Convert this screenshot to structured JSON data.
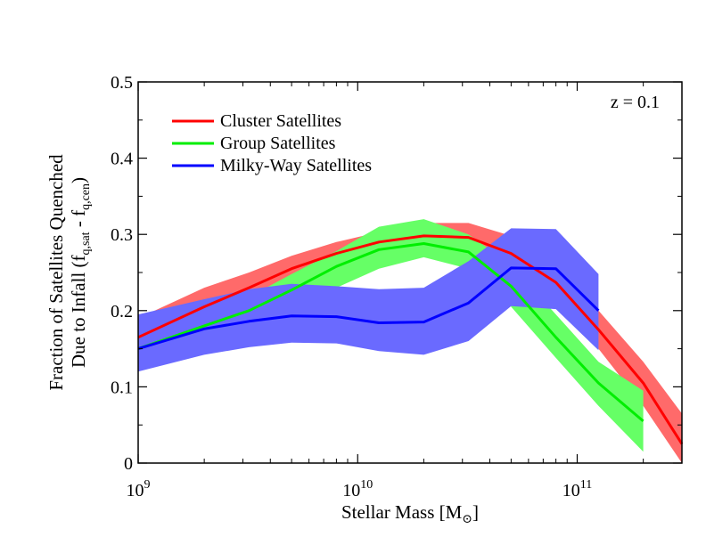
{
  "chart_data": {
    "type": "line",
    "title": "",
    "annotation": "z = 0.1",
    "xscale": "log",
    "xlim": [
      1000000000.0,
      300000000000.0
    ],
    "ylim": [
      0,
      0.5
    ],
    "xlabel": {
      "main": "Stellar Mass [M",
      "sub": "⊙",
      "close": "]"
    },
    "ylabel": {
      "line1": "Fraction of Satellites Quenched",
      "line2_pre": "Due to Infall (f",
      "sub1": "q,sat",
      "mid": " - f",
      "sub2": "q,cen",
      "end": ")"
    },
    "x_ticks": [
      {
        "value": 1000000000.0,
        "base": "10",
        "exp": "9"
      },
      {
        "value": 10000000000.0,
        "base": "10",
        "exp": "10"
      },
      {
        "value": 100000000000.0,
        "base": "10",
        "exp": "11"
      }
    ],
    "y_ticks": [
      {
        "value": 0,
        "label": "0"
      },
      {
        "value": 0.1,
        "label": "0.1"
      },
      {
        "value": 0.2,
        "label": "0.2"
      },
      {
        "value": 0.3,
        "label": "0.3"
      },
      {
        "value": 0.4,
        "label": "0.4"
      },
      {
        "value": 0.5,
        "label": "0.5"
      }
    ],
    "legend_position": "top-left",
    "series": [
      {
        "name": "Cluster Satellites",
        "color": "#ff0000",
        "band_color": "#ff6a6a",
        "x": [
          1000000000.0,
          2000000000.0,
          3200000000.0,
          5000000000.0,
          8000000000.0,
          12500000000.0,
          20000000000.0,
          32000000000.0,
          50000000000.0,
          80000000000.0,
          125000000000.0,
          200000000000.0,
          300000000000.0
        ],
        "y": [
          0.165,
          0.205,
          0.23,
          0.255,
          0.275,
          0.29,
          0.298,
          0.296,
          0.275,
          0.237,
          0.175,
          0.105,
          0.025
        ],
        "upper": [
          0.19,
          0.23,
          0.25,
          0.272,
          0.29,
          0.303,
          0.315,
          0.315,
          0.298,
          0.262,
          0.2,
          0.133,
          0.065
        ],
        "lower": [
          0.14,
          0.18,
          0.205,
          0.235,
          0.258,
          0.275,
          0.285,
          0.28,
          0.255,
          0.212,
          0.15,
          0.075,
          0.0
        ]
      },
      {
        "name": "Group Satellites",
        "color": "#00ee00",
        "band_color": "#66ff66",
        "x": [
          1000000000.0,
          2000000000.0,
          3200000000.0,
          5000000000.0,
          8000000000.0,
          12500000000.0,
          20000000000.0,
          32000000000.0,
          50000000000.0,
          80000000000.0,
          125000000000.0,
          200000000000.0
        ],
        "y": [
          0.15,
          0.18,
          0.2,
          0.227,
          0.258,
          0.28,
          0.288,
          0.277,
          0.232,
          0.165,
          0.105,
          0.055
        ],
        "upper": [
          0.165,
          0.195,
          0.218,
          0.248,
          0.278,
          0.31,
          0.32,
          0.3,
          0.26,
          0.195,
          0.133,
          0.095
        ],
        "lower": [
          0.135,
          0.165,
          0.182,
          0.205,
          0.23,
          0.255,
          0.27,
          0.255,
          0.205,
          0.138,
          0.075,
          0.015
        ]
      },
      {
        "name": "Milky-Way Satellites",
        "color": "#0000ff",
        "band_color": "#6a6aff",
        "x": [
          1000000000.0,
          2000000000.0,
          3200000000.0,
          5000000000.0,
          8000000000.0,
          12500000000.0,
          20000000000.0,
          32000000000.0,
          50000000000.0,
          80000000000.0,
          125000000000.0
        ],
        "y": [
          0.15,
          0.176,
          0.186,
          0.193,
          0.192,
          0.184,
          0.185,
          0.21,
          0.256,
          0.255,
          0.2
        ],
        "upper": [
          0.195,
          0.215,
          0.228,
          0.235,
          0.232,
          0.228,
          0.23,
          0.265,
          0.308,
          0.307,
          0.248
        ],
        "lower": [
          0.12,
          0.142,
          0.152,
          0.158,
          0.157,
          0.147,
          0.142,
          0.16,
          0.206,
          0.202,
          0.148
        ]
      }
    ]
  }
}
